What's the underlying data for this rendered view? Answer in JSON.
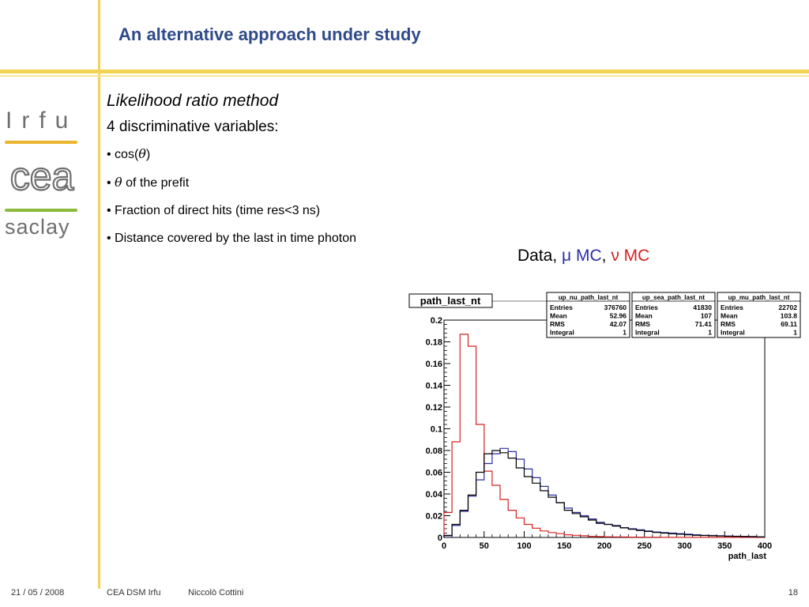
{
  "slide": {
    "title": "An alternative approach under study",
    "subtitle": "Likelihood ratio method",
    "lead": "4 discriminative variables:",
    "bullets": [
      {
        "prefix": "• cos(",
        "symbol": "θ",
        "suffix": ")"
      },
      {
        "prefix": "• ",
        "symbol": "θ",
        "suffix": " of the prefit"
      },
      {
        "prefix": "• Fraction of direct hits (time res<3 ns)",
        "symbol": "",
        "suffix": ""
      },
      {
        "prefix": "• Distance covered by the last in time photon",
        "symbol": "",
        "suffix": ""
      }
    ],
    "legend": {
      "data_label": "Data, ",
      "mu_symbol": "μ",
      "mu_label": " MC",
      "separator": ", ",
      "nu_symbol": "ν",
      "nu_label": " MC"
    }
  },
  "logos": {
    "irfu": "Irfu",
    "cea": "cea",
    "saclay": "saclay"
  },
  "footer": {
    "date": "21 / 05 / 2008",
    "org": "CEA DSM Irfu",
    "author": "Niccolò Cottini",
    "page": "18"
  },
  "colors": {
    "title": "#2f4a8a",
    "accent_bar": "#f2d455",
    "data": "#000000",
    "mu_mc": "#2e2ea6",
    "nu_mc": "#d62222"
  },
  "chart_data": {
    "type": "line",
    "title": "path_last_nt",
    "xlabel": "path_last",
    "ylabel": "",
    "xlim": [
      0,
      400
    ],
    "ylim": [
      0,
      0.2
    ],
    "x_ticks": [
      0,
      50,
      100,
      150,
      200,
      250,
      300,
      350,
      400
    ],
    "y_ticks": [
      0,
      0.02,
      0.04,
      0.06,
      0.08,
      0.1,
      0.12,
      0.14,
      0.16,
      0.18,
      0.2
    ],
    "y_tick_labels": [
      "0",
      "0.02",
      "0.04",
      "0.06",
      "0.08",
      "0.1",
      "0.12",
      "0.14",
      "0.16",
      "0.18",
      "0.2"
    ],
    "bin_width": 10,
    "x_start": 0,
    "stats_boxes": [
      {
        "name": "up_nu_path_last_nt",
        "entries": "376760",
        "mean": "52.96",
        "rms": "42.07",
        "integral": "1"
      },
      {
        "name": "up_sea_path_last_nt",
        "entries": "41830",
        "mean": "107",
        "rms": "71.41",
        "integral": "1"
      },
      {
        "name": "up_mu_path_last_nt",
        "entries": "22702",
        "mean": "103.8",
        "rms": "69.11",
        "integral": "1"
      }
    ],
    "stats_labels": [
      "Entries",
      "Mean",
      "RMS",
      "Integral"
    ],
    "series": [
      {
        "color": "#d62222",
        "values": [
          0.023,
          0.088,
          0.187,
          0.176,
          0.104,
          0.061,
          0.048,
          0.035,
          0.025,
          0.018,
          0.012,
          0.0085,
          0.006,
          0.0045,
          0.0035,
          0.0025,
          0.002,
          0.0015,
          0.001,
          0.0008,
          0.0006,
          0.0005,
          0.0004,
          0.0003,
          0.0003,
          0.0002,
          0.0002,
          0.0001,
          0.0001,
          0.0001,
          0.0001,
          0.0001,
          0.0001,
          0.0001,
          0.0001,
          0.0001,
          0.0001,
          0.0001,
          0.0001,
          0.0001
        ]
      },
      {
        "color": "#2e2ea6",
        "values": [
          0.0015,
          0.011,
          0.024,
          0.038,
          0.053,
          0.068,
          0.077,
          0.082,
          0.079,
          0.072,
          0.063,
          0.055,
          0.047,
          0.039,
          0.032,
          0.027,
          0.023,
          0.02,
          0.017,
          0.014,
          0.012,
          0.011,
          0.009,
          0.008,
          0.007,
          0.006,
          0.005,
          0.0045,
          0.004,
          0.0035,
          0.003,
          0.0025,
          0.002,
          0.0018,
          0.0015,
          0.0013,
          0.0011,
          0.001,
          0.0008,
          0.0006
        ]
      },
      {
        "color": "#000000",
        "values": [
          0.002,
          0.012,
          0.025,
          0.039,
          0.06,
          0.077,
          0.08,
          0.078,
          0.073,
          0.064,
          0.056,
          0.05,
          0.043,
          0.037,
          0.032,
          0.025,
          0.022,
          0.019,
          0.016,
          0.013,
          0.012,
          0.0105,
          0.0088,
          0.0075,
          0.0065,
          0.0055,
          0.0046,
          0.004,
          0.0034,
          0.003,
          0.0024,
          0.002,
          0.0018,
          0.0015,
          0.0013,
          0.0011,
          0.001,
          0.0008,
          0.0007,
          0.0005
        ]
      }
    ]
  }
}
